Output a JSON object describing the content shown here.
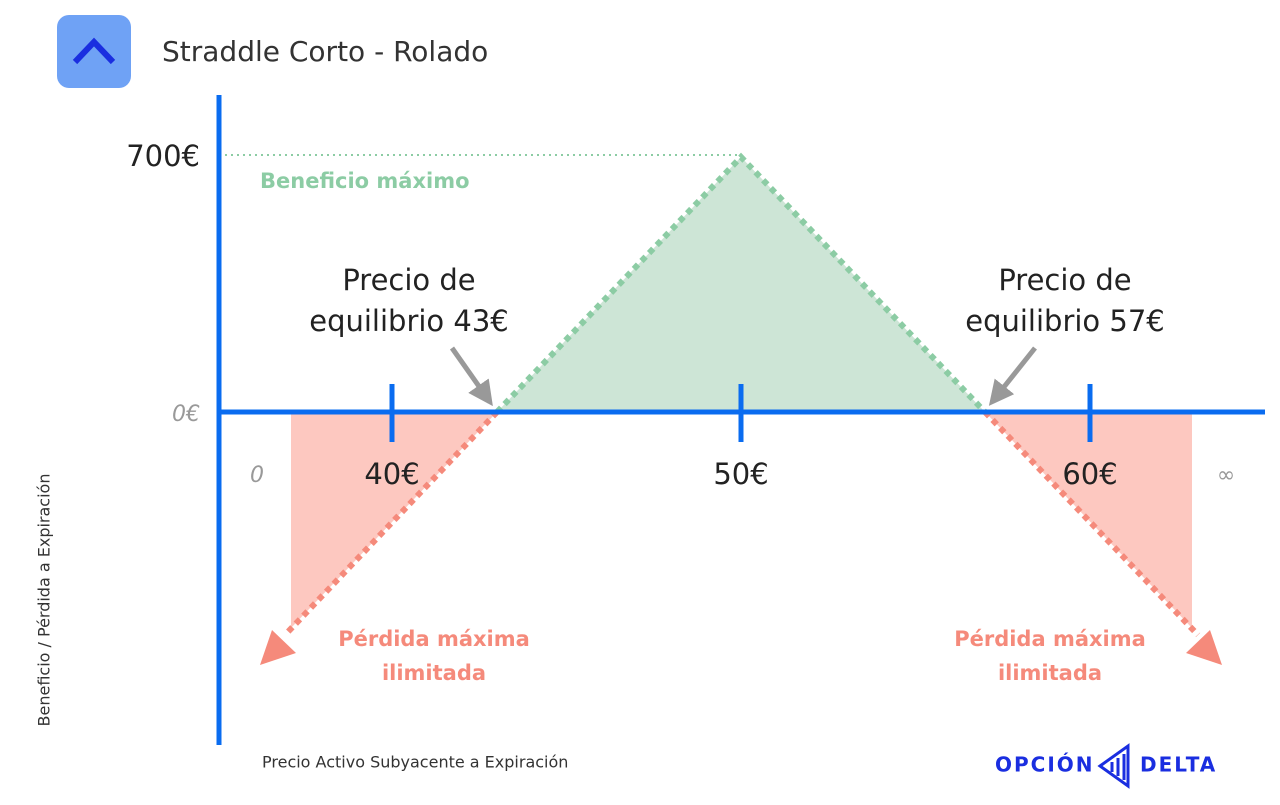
{
  "header": {
    "title": "Straddle Corto - Rolado"
  },
  "axes": {
    "y_title": "Beneficio / Pérdida a Expiración",
    "x_title": "Precio Activo Subyacente a Expiración",
    "y_labels": [
      "700€",
      "0€"
    ],
    "x_labels": [
      "0",
      "40€",
      "50€",
      "60€",
      "∞"
    ]
  },
  "annotations": {
    "max_profit": "Beneficio máximo",
    "breakeven_low": [
      "Precio de",
      "equilibrio 43€"
    ],
    "breakeven_high": [
      "Precio de",
      "equilibrio 57€"
    ],
    "loss_left": [
      "Pérdida máxima",
      "ilimitada"
    ],
    "loss_right": [
      "Pérdida máxima",
      "ilimitada"
    ]
  },
  "logo": {
    "left": "OPCIÓN",
    "right": "DELTA"
  }
}
